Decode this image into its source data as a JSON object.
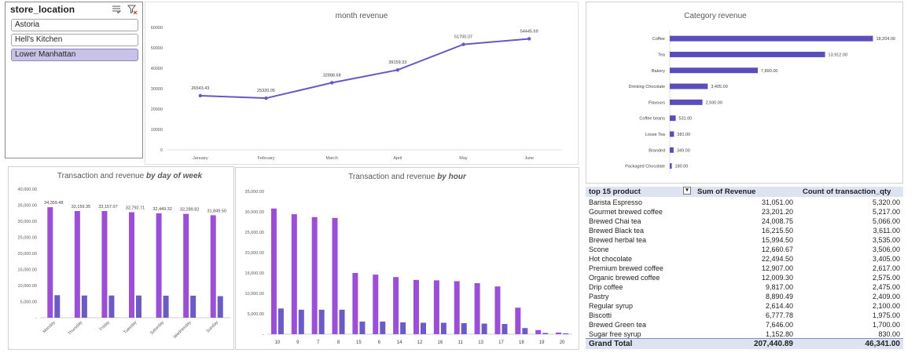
{
  "slicer": {
    "title": "store_location",
    "items": [
      {
        "label": "Astoria",
        "selected": false
      },
      {
        "label": "Hell's Kitchen",
        "selected": false
      },
      {
        "label": "Lower Manhattan",
        "selected": true
      }
    ]
  },
  "month_chart": {
    "chart_data": {
      "type": "line",
      "title": "month revenue",
      "categories": [
        "January",
        "February",
        "March",
        "April",
        "May",
        "June"
      ],
      "values": [
        26543.43,
        25320.05,
        32888.68,
        39159.33,
        51700.07,
        54445.69
      ],
      "value_labels": [
        "26543.43",
        "25320.05",
        "32888.68",
        "39159.33",
        "51700.07",
        "54445.69"
      ],
      "y_ticks": [
        "0",
        "10000",
        "20000",
        "30000",
        "40000",
        "50000",
        "60000"
      ],
      "ylim": [
        0,
        60000
      ],
      "color": "#6b57c4"
    }
  },
  "category_chart": {
    "chart_data": {
      "type": "bar",
      "orientation": "horizontal",
      "title": "Category revenue",
      "categories": [
        "Coffee",
        "Tea",
        "Bakery",
        "Drinking Chocolate",
        "Flavours",
        "Coffee beans",
        "Loose Tea",
        "Branded",
        "Packaged Chocolate"
      ],
      "values": [
        18204.0,
        13912.0,
        7890.0,
        3405.0,
        2930.0,
        531.0,
        381.0,
        349.0,
        180.0
      ],
      "value_labels": [
        "18,204.00",
        "13,912.00",
        "7,890.00",
        "3,405.00",
        "2,930.00",
        "531.00",
        "381.00",
        "349.00",
        "180.00"
      ],
      "xlim": [
        0,
        20000
      ],
      "color": "#5a4ebf"
    }
  },
  "day_chart": {
    "chart_data": {
      "type": "bar",
      "title_main": "Transaction and revenue ",
      "title_emph": "by day of week",
      "categories": [
        "Monday",
        "Thursday",
        "Friday",
        "Tuesday",
        "Saturday",
        "Wednesday",
        "Sunday"
      ],
      "series": [
        {
          "name": "Revenue",
          "values": [
            34359.48,
            33159.35,
            33157.07,
            32792.71,
            32449.32,
            32289.82,
            31849.5
          ],
          "color": "#9b4fd6"
        },
        {
          "name": "Transactions",
          "values": [
            7000,
            6900,
            6900,
            6900,
            6850,
            6850,
            6700
          ],
          "color": "#6a5cc4"
        }
      ],
      "value_labels": [
        "34,359.48",
        "33,159.35",
        "33,157.07",
        "32,792.71",
        "32,449.32",
        "32,289.82",
        "31,849.50"
      ],
      "y_ticks": [
        "-",
        "5,000.00",
        "10,000.00",
        "15,000.00",
        "20,000.00",
        "25,000.00",
        "30,000.00",
        "35,000.00",
        "40,000.00"
      ],
      "ylim": [
        0,
        40000
      ]
    }
  },
  "hour_chart": {
    "chart_data": {
      "type": "bar",
      "title_main": "Transaction and revenue ",
      "title_emph": "by hour",
      "categories": [
        "10",
        "9",
        "7",
        "8",
        "15",
        "6",
        "14",
        "12",
        "16",
        "11",
        "13",
        "17",
        "18",
        "19",
        "20"
      ],
      "series": [
        {
          "name": "Revenue",
          "values": [
            30800,
            29400,
            28700,
            28500,
            15000,
            14600,
            14000,
            13300,
            13200,
            13000,
            12500,
            11700,
            6500,
            1000,
            400
          ],
          "color": "#9b4fd6"
        },
        {
          "name": "Transactions",
          "values": [
            6300,
            6000,
            6000,
            6000,
            3100,
            3100,
            2900,
            2800,
            2800,
            2700,
            2600,
            2500,
            1500,
            300,
            200
          ],
          "color": "#6a5cc4"
        }
      ],
      "y_ticks": [
        "-",
        "5,000.00",
        "10,000.00",
        "15,000.00",
        "20,000.00",
        "25,000.00",
        "30,000.00",
        "35,000.00"
      ],
      "ylim": [
        0,
        35000
      ]
    }
  },
  "pivot": {
    "headers": {
      "product": "top 15 product",
      "revenue": "Sum of Revenue",
      "qty": "Count of transaction_qty"
    },
    "rows": [
      {
        "product": "Barista Espresso",
        "revenue": "31,051.00",
        "qty": "5,320.00"
      },
      {
        "product": "Gourmet brewed coffee",
        "revenue": "23,201.20",
        "qty": "5,217.00"
      },
      {
        "product": "Brewed Chai tea",
        "revenue": "24,008.75",
        "qty": "5,066.00"
      },
      {
        "product": "Brewed Black tea",
        "revenue": "16,215.50",
        "qty": "3,611.00"
      },
      {
        "product": "Brewed herbal tea",
        "revenue": "15,994.50",
        "qty": "3,535.00"
      },
      {
        "product": "Scone",
        "revenue": "12,660.67",
        "qty": "3,506.00"
      },
      {
        "product": "Hot chocolate",
        "revenue": "22,494.50",
        "qty": "3,405.00"
      },
      {
        "product": "Premium brewed coffee",
        "revenue": "12,907.00",
        "qty": "2,617.00"
      },
      {
        "product": "Organic brewed coffee",
        "revenue": "12,009.30",
        "qty": "2,575.00"
      },
      {
        "product": "Drip coffee",
        "revenue": "9,817.00",
        "qty": "2,475.00"
      },
      {
        "product": "Pastry",
        "revenue": "8,890.49",
        "qty": "2,409.00"
      },
      {
        "product": "Regular syrup",
        "revenue": "2,614.40",
        "qty": "2,100.00"
      },
      {
        "product": "Biscotti",
        "revenue": "6,777.78",
        "qty": "1,975.00"
      },
      {
        "product": "Brewed Green tea",
        "revenue": "7,646.00",
        "qty": "1,700.00"
      },
      {
        "product": "Sugar free syrup",
        "revenue": "1,152.80",
        "qty": "830.00"
      }
    ],
    "total": {
      "label": "Grand Total",
      "revenue": "207,440.89",
      "qty": "46,341.00"
    }
  }
}
